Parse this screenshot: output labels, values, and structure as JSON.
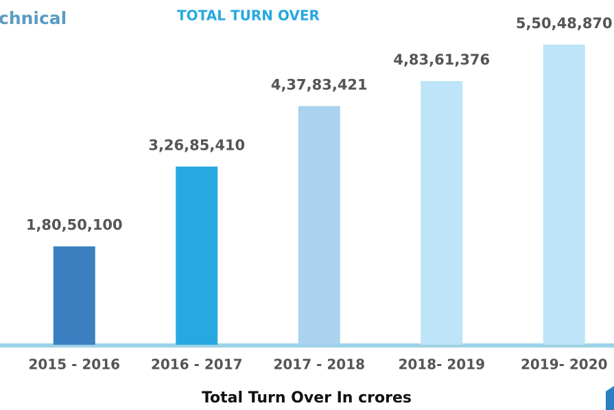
{
  "chart_data": {
    "type": "bar",
    "header": "chnical",
    "title": "TOTAL TURN OVER",
    "x_label": "Total Turn Over In crores",
    "categories": [
      "2015 - 2016",
      "2016 - 2017",
      "2017 - 2018",
      "2018- 2019",
      "2019- 2020"
    ],
    "values": [
      18050100,
      32685410,
      43783421,
      48361376,
      55048870
    ],
    "value_labels": [
      "1,80,50,100",
      "3,26,85,410",
      "4,37,83,421",
      "4,83,61,376",
      "5,50,48,870"
    ],
    "colors": [
      "#3a80c1",
      "#27a8e0",
      "#a9d3ee",
      "#bde4f8",
      "#bde4f8"
    ]
  }
}
